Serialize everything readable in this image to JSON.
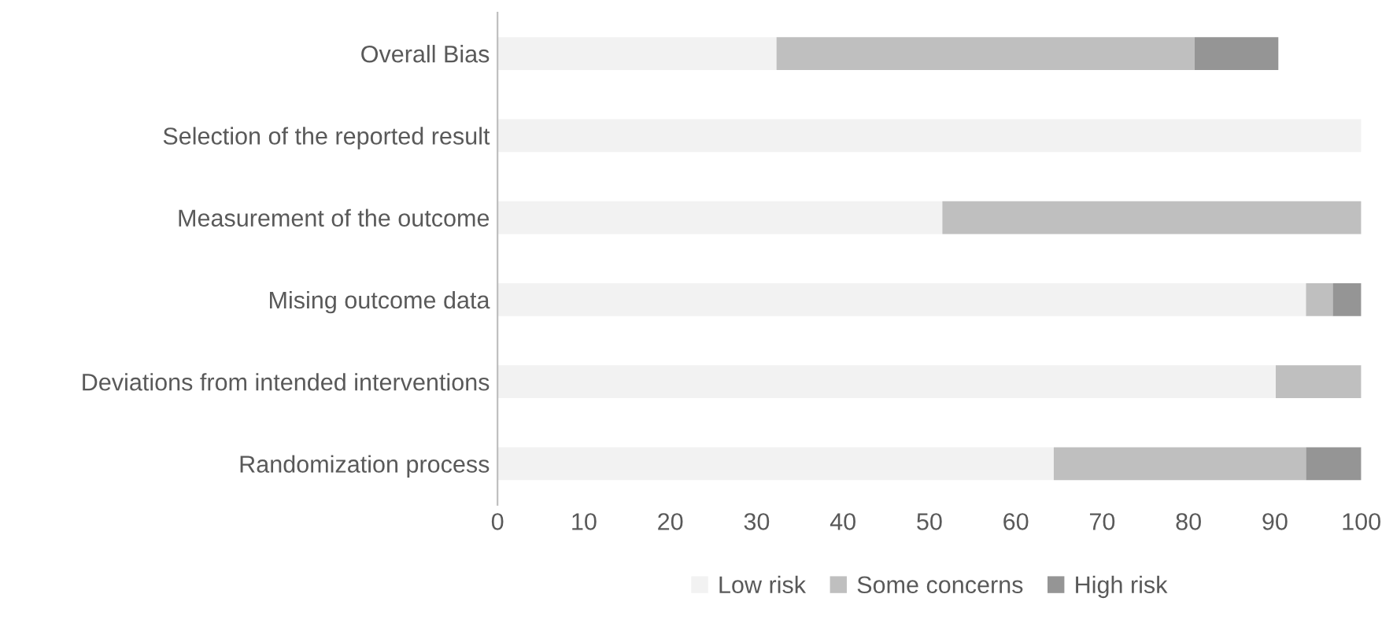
{
  "chart_data": {
    "type": "bar",
    "orientation": "horizontal",
    "stacked": true,
    "categories": [
      "Overall Bias",
      "Selection of the reported result",
      "Measurement of the outcome",
      "Mising outcome data",
      "Deviations from intended interventions",
      "Randomization process"
    ],
    "series": [
      {
        "name": "Low risk",
        "color": "#f2f2f2",
        "values": [
          32.3,
          100,
          51.5,
          93.6,
          90.1,
          64.4
        ]
      },
      {
        "name": "Some concerns",
        "color": "#bfbfbf",
        "values": [
          48.4,
          0,
          48.5,
          3.1,
          9.9,
          29.2
        ]
      },
      {
        "name": "High risk",
        "color": "#959595",
        "values": [
          9.7,
          0,
          0,
          3.3,
          0,
          6.4
        ]
      }
    ],
    "xlim": [
      0,
      100
    ],
    "xticks": [
      0,
      10,
      20,
      30,
      40,
      50,
      60,
      70,
      80,
      90,
      100
    ],
    "grid": false,
    "legend": "bottom"
  }
}
